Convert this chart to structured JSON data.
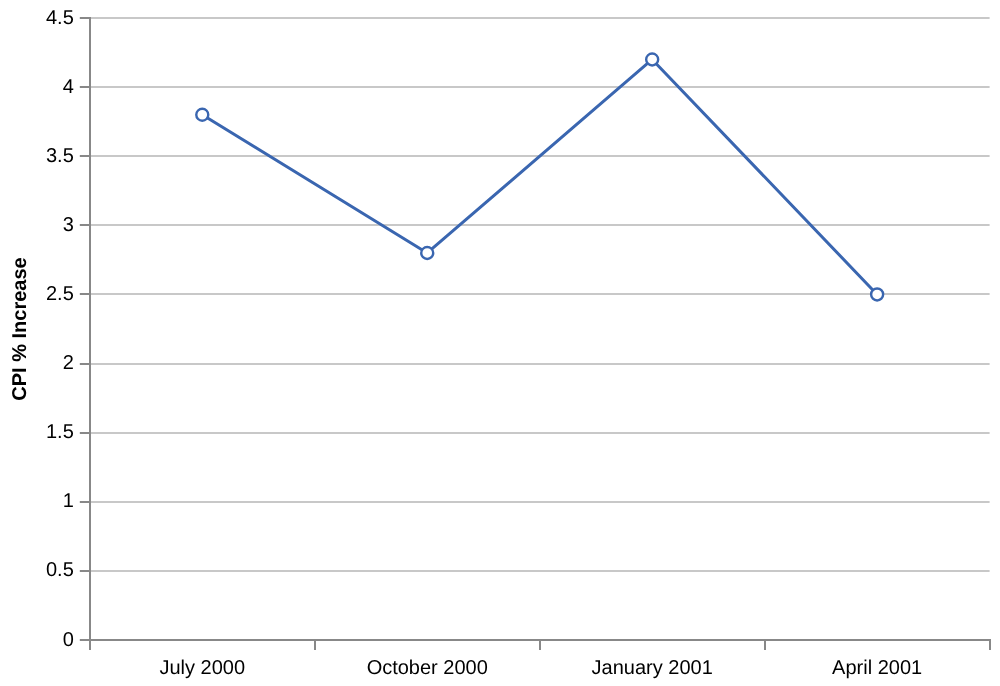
{
  "chart_data": {
    "type": "line",
    "ylabel": "CPI % Increase",
    "categories": [
      "July 2000",
      "October 2000",
      "January 2001",
      "April 2001"
    ],
    "series": [
      {
        "color": "#3a66b0",
        "values": [
          3.8,
          2.8,
          4.2,
          2.5
        ]
      }
    ],
    "ylim": [
      0,
      4.5
    ],
    "yticks": [
      0,
      {
        "value": 0.5,
        "label": "0.5"
      },
      1,
      {
        "value": 1.5,
        "label": "1.5"
      },
      2,
      {
        "value": 2.5,
        "label": "2.5"
      },
      3,
      {
        "value": 3.5,
        "label": "3.5"
      },
      4,
      {
        "value": 4.5,
        "label": "4.5"
      }
    ],
    "grid": "y",
    "legend": false,
    "marker": "circle",
    "line_style": "solid"
  }
}
